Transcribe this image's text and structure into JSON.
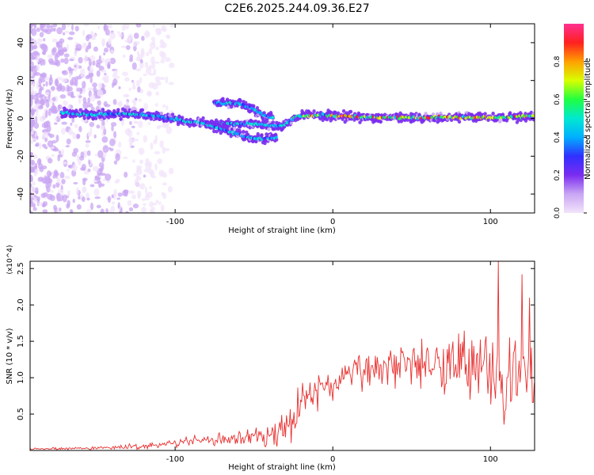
{
  "title": "C2E6.2025.244.09.36.E27",
  "chart_data": [
    {
      "type": "heatmap",
      "name": "frequency-height spectrogram",
      "xlabel": "Height of straight line (km)",
      "ylabel": "Frequency (Hz)",
      "xlim": [
        -192,
        128
      ],
      "ylim": [
        -50,
        50
      ],
      "xticks": [
        -100,
        0,
        100
      ],
      "xtick_labels": [
        "-100",
        "0",
        "100"
      ],
      "yticks": [
        -40,
        -20,
        0,
        20,
        40
      ],
      "ytick_labels": [
        "-40",
        "-20",
        "0",
        "20",
        "40"
      ],
      "colorbar": {
        "label": "Normalized spectral amplitude",
        "range": [
          0.0,
          1.0
        ],
        "ticks": [
          0.0,
          0.2,
          0.4,
          0.6,
          0.8
        ],
        "tick_labels": [
          "0.0",
          "0.2",
          "0.4",
          "0.6",
          "0.8"
        ],
        "colors": [
          "#f2e4fb",
          "#c9a6f3",
          "#7b2cf0",
          "#3030ff",
          "#00b0ff",
          "#00e8d0",
          "#20ff40",
          "#d8ff00",
          "#ffa000",
          "#ff2020",
          "#ff3090"
        ]
      },
      "ridges": [
        {
          "name": "main-band",
          "points": [
            [
              -172,
              3
            ],
            [
              -150,
              2
            ],
            [
              -130,
              2.5
            ],
            [
              -110,
              1
            ],
            [
              -90,
              -2
            ],
            [
              -70,
              -3
            ],
            [
              -55,
              -3
            ],
            [
              -45,
              -3
            ],
            [
              -38,
              -4
            ],
            [
              -32,
              -4
            ],
            [
              -25,
              0
            ],
            [
              -20,
              1.5
            ],
            [
              -10,
              1.5
            ],
            [
              0,
              1.5
            ],
            [
              20,
              0.5
            ],
            [
              40,
              0.5
            ],
            [
              60,
              0.5
            ],
            [
              80,
              0.5
            ],
            [
              100,
              0.5
            ],
            [
              128,
              1
            ]
          ]
        },
        {
          "name": "upper-branch",
          "points": [
            [
              -75,
              8
            ],
            [
              -60,
              8
            ],
            [
              -50,
              5
            ],
            [
              -45,
              2
            ],
            [
              -38,
              0
            ]
          ]
        },
        {
          "name": "lower-branch",
          "points": [
            [
              -80,
              -3
            ],
            [
              -65,
              -7
            ],
            [
              -55,
              -10
            ],
            [
              -45,
              -11
            ],
            [
              -35,
              -10
            ]
          ]
        }
      ]
    },
    {
      "type": "line",
      "name": "snr-trace",
      "xlabel": "Height of straight line (km)",
      "ylabel": "SNR (10 * v/v)",
      "yscale_note": "(x10^4)",
      "xlim": [
        -192,
        128
      ],
      "ylim": [
        0,
        2.6
      ],
      "xticks": [
        -100,
        0,
        100
      ],
      "xtick_labels": [
        "-100",
        "0",
        "100"
      ],
      "yticks": [
        0.5,
        1.0,
        1.5,
        2.0,
        2.5
      ],
      "ytick_labels": [
        "0.5",
        "1.0",
        "1.5",
        "2.0",
        "2.5"
      ],
      "color": "#e8302f",
      "envelope": {
        "x": [
          -192,
          -150,
          -120,
          -100,
          -80,
          -60,
          -40,
          -30,
          -25,
          -20,
          -10,
          0,
          10,
          20,
          30,
          40,
          50,
          60,
          70,
          80,
          90,
          100,
          110,
          120,
          128
        ],
        "mean": [
          0.02,
          0.03,
          0.06,
          0.1,
          0.14,
          0.17,
          0.2,
          0.28,
          0.45,
          0.7,
          0.85,
          0.9,
          1.0,
          1.1,
          1.15,
          1.2,
          1.25,
          1.25,
          1.25,
          1.25,
          1.2,
          1.15,
          1.05,
          1.0,
          1.0
        ],
        "spread": [
          0.01,
          0.02,
          0.04,
          0.05,
          0.07,
          0.09,
          0.12,
          0.2,
          0.3,
          0.25,
          0.25,
          0.25,
          0.25,
          0.28,
          0.3,
          0.3,
          0.3,
          0.35,
          0.35,
          0.4,
          0.45,
          0.55,
          0.6,
          0.55,
          0.4
        ]
      },
      "peaks": [
        {
          "x": 105,
          "y": 2.6
        },
        {
          "x": 120,
          "y": 2.42
        },
        {
          "x": 125,
          "y": 2.1
        }
      ]
    }
  ]
}
